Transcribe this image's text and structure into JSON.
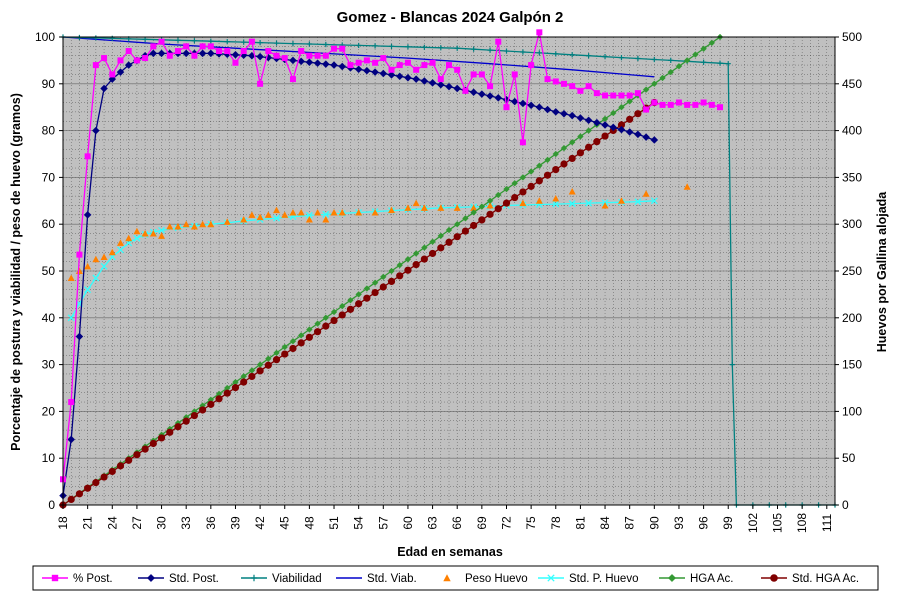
{
  "chart_data": {
    "type": "line",
    "title": "Gomez - Blancas 2024 Galpón 2",
    "xlabel": "Edad en semanas",
    "ylabel_left": "Porcentaje de postura y viabilidad  /  peso de huevo (gramos)",
    "ylabel_right": "Huevos por Gallina alojada",
    "xlim": [
      18,
      112
    ],
    "x_ticks": [
      "18",
      "21",
      "24",
      "27",
      "30",
      "33",
      "36",
      "39",
      "42",
      "45",
      "48",
      "51",
      "54",
      "57",
      "60",
      "63",
      "66",
      "69",
      "72",
      "75",
      "78",
      "81",
      "84",
      "87",
      "90",
      "93",
      "96",
      "99",
      "102",
      "105",
      "108",
      "111"
    ],
    "y_left_lim": [
      0,
      100
    ],
    "y_left_ticks": [
      "0",
      "10",
      "20",
      "30",
      "40",
      "50",
      "60",
      "70",
      "80",
      "90",
      "100"
    ],
    "y_right_lim": [
      0,
      500
    ],
    "y_right_ticks": [
      "0",
      "50",
      "100",
      "150",
      "200",
      "250",
      "300",
      "350",
      "400",
      "450",
      "500"
    ],
    "grid": true,
    "legend_position": "bottom",
    "series": [
      {
        "name": "% Post.",
        "axis": "left",
        "color": "#FF00FF",
        "marker": "square",
        "x": [
          18,
          19,
          20,
          21,
          22,
          23,
          24,
          25,
          26,
          27,
          28,
          29,
          30,
          31,
          32,
          33,
          34,
          35,
          36,
          37,
          38,
          39,
          40,
          41,
          42,
          43,
          44,
          45,
          46,
          47,
          48,
          49,
          50,
          51,
          52,
          53,
          54,
          55,
          56,
          57,
          58,
          59,
          60,
          61,
          62,
          63,
          64,
          65,
          66,
          67,
          68,
          69,
          70,
          71,
          72,
          73,
          74,
          75,
          76,
          77,
          78,
          79,
          80,
          81,
          82,
          83,
          84,
          85,
          86,
          87,
          88,
          89,
          90,
          91,
          92,
          93,
          94,
          95,
          96,
          97,
          98
        ],
        "y": [
          5.5,
          22,
          53.5,
          74.5,
          94,
          95.5,
          92,
          95,
          97,
          95,
          95.5,
          98,
          99,
          96,
          97,
          98,
          96,
          98,
          98,
          97,
          97,
          94.5,
          97,
          99,
          90,
          97,
          96,
          95.5,
          91,
          97,
          96,
          96,
          96,
          97.5,
          97.5,
          94,
          94.5,
          95,
          94.5,
          95.5,
          93,
          94,
          94.5,
          93,
          94,
          94.5,
          91,
          94,
          93,
          88.5,
          92,
          92,
          89.5,
          99,
          85,
          92,
          77.5,
          94,
          101,
          91,
          90.5,
          90,
          89.5,
          88.5,
          89.5,
          88,
          87.5,
          87.5,
          87.5,
          87.5,
          88,
          84.5,
          86,
          85.5,
          85.5,
          86,
          85.5,
          85.5,
          86,
          85.5,
          85
        ]
      },
      {
        "name": "Std. Post.",
        "axis": "left",
        "color": "#000080",
        "marker": "diamond",
        "x": [
          18,
          19,
          20,
          21,
          22,
          23,
          24,
          25,
          26,
          27,
          28,
          29,
          30,
          31,
          32,
          33,
          34,
          35,
          36,
          37,
          38,
          39,
          40,
          41,
          42,
          43,
          44,
          45,
          46,
          47,
          48,
          49,
          50,
          51,
          52,
          53,
          54,
          55,
          56,
          57,
          58,
          59,
          60,
          61,
          62,
          63,
          64,
          65,
          66,
          67,
          68,
          69,
          70,
          71,
          72,
          73,
          74,
          75,
          76,
          77,
          78,
          79,
          80,
          81,
          82,
          83,
          84,
          85,
          86,
          87,
          88,
          89,
          90
        ],
        "y": [
          2,
          14,
          36,
          62,
          80,
          89,
          91,
          92.5,
          94,
          95,
          96,
          96.5,
          96.5,
          96.5,
          96.5,
          96.5,
          96.5,
          96.5,
          96.5,
          96.4,
          96.3,
          96.2,
          96.1,
          96,
          95.8,
          95.6,
          95.4,
          95.2,
          95,
          94.8,
          94.6,
          94.4,
          94.2,
          94,
          93.7,
          93.4,
          93.1,
          92.8,
          92.5,
          92.2,
          91.9,
          91.6,
          91.3,
          91,
          90.6,
          90.2,
          89.8,
          89.4,
          89,
          88.6,
          88.2,
          87.8,
          87.4,
          87,
          86.6,
          86.2,
          85.8,
          85.4,
          85,
          84.5,
          84,
          83.6,
          83.2,
          82.7,
          82.2,
          81.7,
          81.2,
          80.7,
          80.2,
          79.7,
          79.2,
          78.6,
          78
        ]
      },
      {
        "name": "Viabilidad",
        "axis": "left",
        "color": "#008080",
        "marker": "plus",
        "x": [
          18,
          20,
          22,
          24,
          26,
          28,
          30,
          32,
          34,
          36,
          38,
          40,
          42,
          44,
          46,
          48,
          50,
          52,
          54,
          56,
          58,
          60,
          62,
          64,
          66,
          68,
          70,
          72,
          74,
          76,
          78,
          80,
          82,
          84,
          86,
          88,
          90,
          92,
          94,
          96,
          98,
          99,
          99.5,
          100,
          102,
          104,
          106,
          108,
          110,
          112
        ],
        "y": [
          100,
          99.9,
          99.8,
          99.7,
          99.6,
          99.5,
          99.4,
          99.3,
          99.2,
          99.1,
          99,
          98.9,
          98.8,
          98.7,
          98.6,
          98.5,
          98.4,
          98.3,
          98.2,
          98.1,
          98,
          97.9,
          97.8,
          97.7,
          97.6,
          97.4,
          97.2,
          97,
          96.8,
          96.6,
          96.4,
          96.2,
          96,
          95.8,
          95.6,
          95.4,
          95.2,
          95,
          94.8,
          94.6,
          94.4,
          94.3,
          30,
          0,
          0,
          0,
          0,
          0,
          0,
          0
        ]
      },
      {
        "name": "Std. Viab.",
        "axis": "left",
        "color": "#0000CC",
        "marker": "none",
        "x": [
          18,
          30,
          40,
          50,
          60,
          70,
          80,
          90
        ],
        "y": [
          100,
          98.5,
          97.5,
          96.5,
          95.5,
          94.3,
          93,
          91.5
        ]
      },
      {
        "name": "Peso Huevo",
        "axis": "left",
        "color": "#FF8000",
        "marker": "triangle",
        "x": [
          19,
          20,
          21,
          22,
          23,
          24,
          25,
          26,
          27,
          28,
          29,
          30,
          31,
          32,
          33,
          34,
          35,
          36,
          38,
          40,
          41,
          42,
          43,
          44,
          45,
          46,
          47,
          48,
          49,
          50,
          51,
          52,
          54,
          56,
          58,
          60,
          61,
          62,
          64,
          66,
          68,
          70,
          72,
          74,
          76,
          78,
          80,
          84,
          86,
          89,
          94
        ],
        "y": [
          48.5,
          50,
          51,
          52.5,
          53,
          54,
          56,
          57,
          58.5,
          58,
          58,
          57.5,
          59.5,
          59.5,
          60,
          59.5,
          60,
          60,
          60.5,
          61,
          62,
          61.5,
          62,
          63,
          62,
          62.5,
          62.5,
          61,
          62.5,
          61,
          62.5,
          62.5,
          62.5,
          62.5,
          63,
          63.5,
          64.5,
          63.5,
          63.5,
          63.5,
          63.5,
          64,
          64.5,
          64.5,
          65,
          65.5,
          67,
          64,
          65,
          66.5,
          68
        ]
      },
      {
        "name": "Std. P. Huevo",
        "axis": "left",
        "color": "#33FFFF",
        "marker": "x",
        "x": [
          19,
          20,
          21,
          22,
          23,
          24,
          25,
          26,
          27,
          28,
          29,
          30,
          32,
          34,
          36,
          38,
          40,
          42,
          44,
          46,
          48,
          50,
          52,
          54,
          56,
          58,
          60,
          62,
          64,
          66,
          68,
          70,
          72,
          74,
          76,
          78,
          80,
          82,
          84,
          86,
          88,
          90
        ],
        "y": [
          40,
          43,
          46,
          48.5,
          51,
          53,
          54.5,
          56,
          57,
          57.8,
          58.3,
          58.7,
          59.2,
          59.6,
          60,
          60.3,
          60.7,
          61,
          61.3,
          61.6,
          61.9,
          62.1,
          62.3,
          62.5,
          62.7,
          62.9,
          63.1,
          63.3,
          63.5,
          63.6,
          63.7,
          63.8,
          64,
          64.1,
          64.2,
          64.3,
          64.4,
          64.5,
          64.6,
          64.7,
          64.8,
          65
        ]
      },
      {
        "name": "HGA Ac.",
        "axis": "right",
        "color": "#339933",
        "marker": "diamond",
        "x": [
          18,
          98
        ],
        "y": [
          0,
          500
        ]
      },
      {
        "name": "Std. HGA Ac.",
        "axis": "right",
        "color": "#800000",
        "marker": "circle",
        "x": [
          18,
          90
        ],
        "y": [
          0,
          430
        ]
      }
    ]
  }
}
